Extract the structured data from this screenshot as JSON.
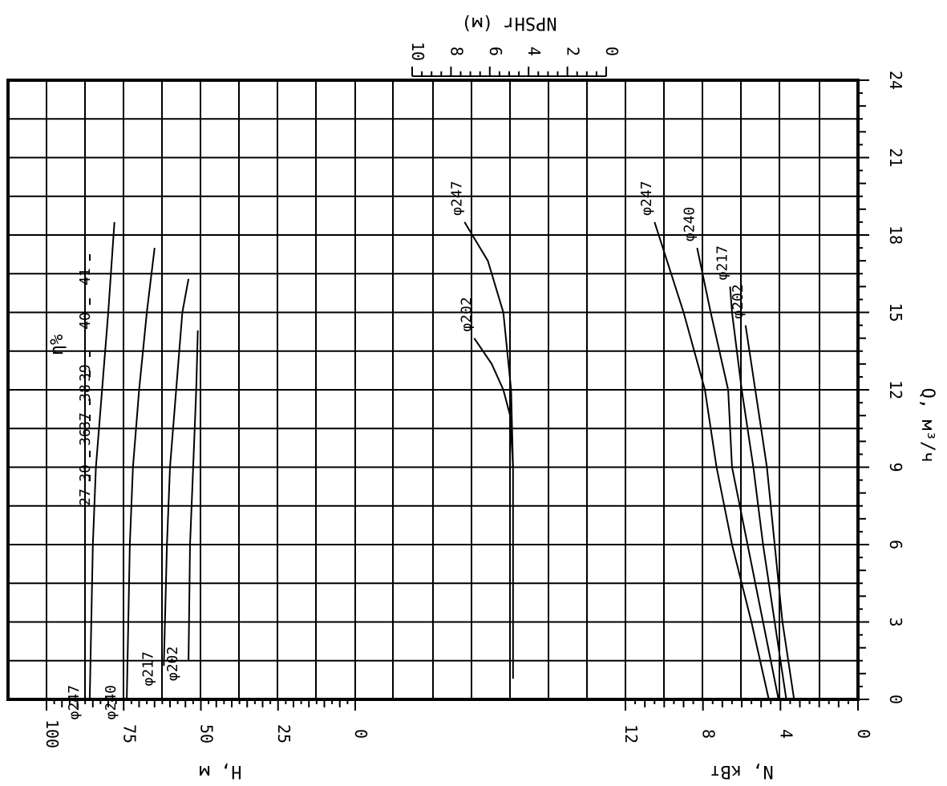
{
  "chart_data": {
    "type": "line",
    "orientation": "rotated-90",
    "x_axis": {
      "label": "Q, м³/ч",
      "range": [
        0,
        24
      ],
      "ticks": [
        "0",
        "3",
        "6",
        "9",
        "12",
        "15",
        "18",
        "21",
        "24"
      ]
    },
    "head_axis": {
      "label": "H, м",
      "range": [
        0,
        100
      ],
      "ticks": [
        "0",
        "25",
        "50",
        "75",
        "100"
      ]
    },
    "npsh_axis": {
      "label": "NPSHr (м)",
      "range": [
        0,
        10
      ],
      "ticks": [
        "0",
        "2",
        "4",
        "6",
        "8",
        "10"
      ]
    },
    "power_axis": {
      "label": "N, кВт",
      "range": [
        0,
        12
      ],
      "ticks": [
        "0",
        "4",
        "8",
        "12"
      ]
    },
    "efficiency_label": "η%",
    "efficiency_levels": [
      "27",
      "30",
      "36",
      "37",
      "38",
      "39",
      "40",
      "41"
    ],
    "head_curves": [
      {
        "name": "φ247",
        "points": [
          [
            0,
            86
          ],
          [
            6,
            85
          ],
          [
            9,
            84
          ],
          [
            12,
            82
          ],
          [
            15,
            80
          ],
          [
            18.5,
            78
          ]
        ]
      },
      {
        "name": "φ240",
        "points": [
          [
            0,
            74
          ],
          [
            6,
            73
          ],
          [
            9,
            72
          ],
          [
            12,
            70
          ],
          [
            15,
            67.5
          ],
          [
            17.5,
            65
          ]
        ]
      },
      {
        "name": "φ217",
        "points": [
          [
            1.3,
            62
          ],
          [
            6,
            61
          ],
          [
            9,
            60
          ],
          [
            12,
            58
          ],
          [
            15,
            56
          ],
          [
            16.3,
            54
          ]
        ]
      },
      {
        "name": "φ202",
        "points": [
          [
            1.5,
            54
          ],
          [
            6,
            53.5
          ],
          [
            9,
            52.5
          ],
          [
            12,
            51.5
          ],
          [
            14.3,
            51
          ]
        ]
      }
    ],
    "npsh_curves": [
      {
        "name": "φ247",
        "points": [
          [
            0.8,
            4.8
          ],
          [
            6,
            4.8
          ],
          [
            9,
            4.8
          ],
          [
            12,
            4.9
          ],
          [
            15,
            5.3
          ],
          [
            17,
            6.1
          ],
          [
            18.5,
            7.3
          ]
        ]
      },
      {
        "name": "φ202",
        "points": [
          [
            9,
            4.8
          ],
          [
            11,
            4.95
          ],
          [
            12,
            5.3
          ],
          [
            13,
            5.9
          ],
          [
            14,
            6.8
          ]
        ]
      }
    ],
    "power_curves": [
      {
        "name": "φ247",
        "points": [
          [
            0,
            4.6
          ],
          [
            3,
            5.5
          ],
          [
            6,
            6.5
          ],
          [
            9,
            7.3
          ],
          [
            12,
            7.9
          ],
          [
            15,
            9.0
          ],
          [
            18.5,
            10.5
          ]
        ]
      },
      {
        "name": "φ240",
        "points": [
          [
            0,
            4.1
          ],
          [
            3,
            4.9
          ],
          [
            6,
            5.7
          ],
          [
            9,
            6.5
          ],
          [
            12,
            6.7
          ],
          [
            15,
            7.6
          ],
          [
            17.5,
            8.3
          ]
        ]
      },
      {
        "name": "φ217",
        "points": [
          [
            0,
            3.7
          ],
          [
            3,
            4.3
          ],
          [
            6,
            4.9
          ],
          [
            9,
            5.4
          ],
          [
            12,
            6.0
          ],
          [
            15,
            6.5
          ],
          [
            16,
            6.6
          ]
        ]
      },
      {
        "name": "φ202",
        "points": [
          [
            0,
            3.3
          ],
          [
            3,
            3.9
          ],
          [
            6,
            4.3
          ],
          [
            9,
            4.7
          ],
          [
            10.5,
            5.0
          ],
          [
            12,
            5.3
          ],
          [
            14.5,
            5.8
          ]
        ]
      }
    ],
    "grid": true
  }
}
